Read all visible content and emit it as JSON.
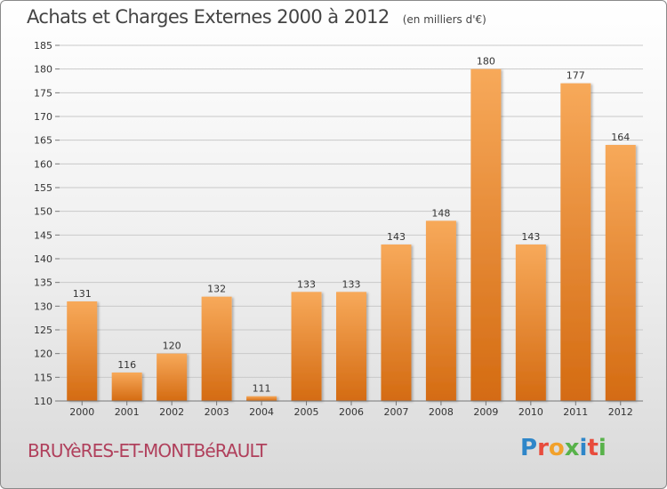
{
  "title": "Achats et Charges Externes 2000 à 2012",
  "subtitle": "(en milliers d'€)",
  "location": "BRUYèRES-ET-MONTBéRAULT",
  "brand": {
    "letters": [
      {
        "char": "P",
        "color": "#2e86c9"
      },
      {
        "char": "r",
        "color": "#e84c3d"
      },
      {
        "char": "o",
        "color": "#f2a12b"
      },
      {
        "char": "x",
        "color": "#58b24a"
      },
      {
        "char": "i",
        "color": "#2e86c9"
      },
      {
        "char": "t",
        "color": "#e84c3d"
      },
      {
        "char": "i",
        "color": "#58b24a"
      }
    ]
  },
  "colors": {
    "bar_top": "#f7a95a",
    "bar_bottom": "#d46b12",
    "grid": "#c9c9c9",
    "axis_text": "#333333",
    "title": "#444444",
    "location": "#b0405c"
  },
  "chart_data": {
    "type": "bar",
    "title": "Achats et Charges Externes 2000 à 2012",
    "subtitle": "(en milliers d'€)",
    "xlabel": "",
    "ylabel": "",
    "categories": [
      "2000",
      "2001",
      "2002",
      "2003",
      "2004",
      "2005",
      "2006",
      "2007",
      "2008",
      "2009",
      "2010",
      "2011",
      "2012"
    ],
    "values": [
      131,
      116,
      120,
      132,
      111,
      133,
      133,
      143,
      148,
      180,
      143,
      177,
      164
    ],
    "ylim": [
      110,
      185
    ],
    "yticks": [
      110,
      115,
      120,
      125,
      130,
      135,
      140,
      145,
      150,
      155,
      160,
      165,
      170,
      175,
      180,
      185
    ],
    "grid": true,
    "legend": "none"
  }
}
